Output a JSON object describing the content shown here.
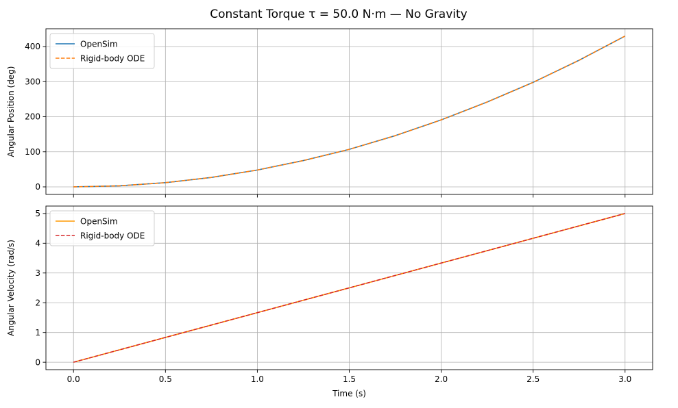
{
  "figure": {
    "title": "Constant Torque τ = 50.0 N·m — No Gravity",
    "background": "#ffffff"
  },
  "chart_data": [
    {
      "type": "line",
      "title": "",
      "xlabel": "",
      "ylabel": "Angular Position (deg)",
      "xlim": [
        -0.15,
        3.15
      ],
      "ylim": [
        -21.5,
        450.8
      ],
      "xticks": [
        0.0,
        0.5,
        1.0,
        1.5,
        2.0,
        2.5,
        3.0
      ],
      "xtick_labels_visible": false,
      "yticks": [
        0,
        100,
        200,
        300,
        400
      ],
      "ytick_labels": [
        "0",
        "100",
        "200",
        "300",
        "400"
      ],
      "grid": true,
      "legend": "upper-left",
      "series": [
        {
          "name": "OpenSim",
          "color": "#1f77b4",
          "style": "solid",
          "x": [
            0,
            0.25,
            0.5,
            0.75,
            1.0,
            1.25,
            1.5,
            1.75,
            2.0,
            2.25,
            2.5,
            2.75,
            3.0
          ],
          "values": [
            0,
            3,
            12,
            27,
            48,
            75,
            107,
            146,
            191,
            242,
            298,
            361,
            430
          ]
        },
        {
          "name": "Rigid-body ODE",
          "color": "#ff7f0e",
          "style": "dashed",
          "x": [
            0,
            0.25,
            0.5,
            0.75,
            1.0,
            1.25,
            1.5,
            1.75,
            2.0,
            2.25,
            2.5,
            2.75,
            3.0
          ],
          "values": [
            0,
            3,
            12,
            27,
            48,
            75,
            107,
            146,
            191,
            242,
            298,
            361,
            430
          ]
        }
      ]
    },
    {
      "type": "line",
      "title": "",
      "xlabel": "Time (s)",
      "ylabel": "Angular Velocity (rad/s)",
      "xlim": [
        -0.15,
        3.15
      ],
      "ylim": [
        -0.25,
        5.25
      ],
      "xticks": [
        0.0,
        0.5,
        1.0,
        1.5,
        2.0,
        2.5,
        3.0
      ],
      "xtick_labels": [
        "0.0",
        "0.5",
        "1.0",
        "1.5",
        "2.0",
        "2.5",
        "3.0"
      ],
      "yticks": [
        0,
        1,
        2,
        3,
        4,
        5
      ],
      "ytick_labels": [
        "0",
        "1",
        "2",
        "3",
        "4",
        "5"
      ],
      "grid": true,
      "legend": "upper-left",
      "series": [
        {
          "name": "OpenSim",
          "color": "#ff9800",
          "style": "solid",
          "x": [
            0,
            3.0
          ],
          "values": [
            0,
            5.0
          ]
        },
        {
          "name": "Rigid-body ODE",
          "color": "#d62728",
          "style": "dashed",
          "x": [
            0,
            3.0
          ],
          "values": [
            0,
            5.0
          ]
        }
      ]
    }
  ]
}
